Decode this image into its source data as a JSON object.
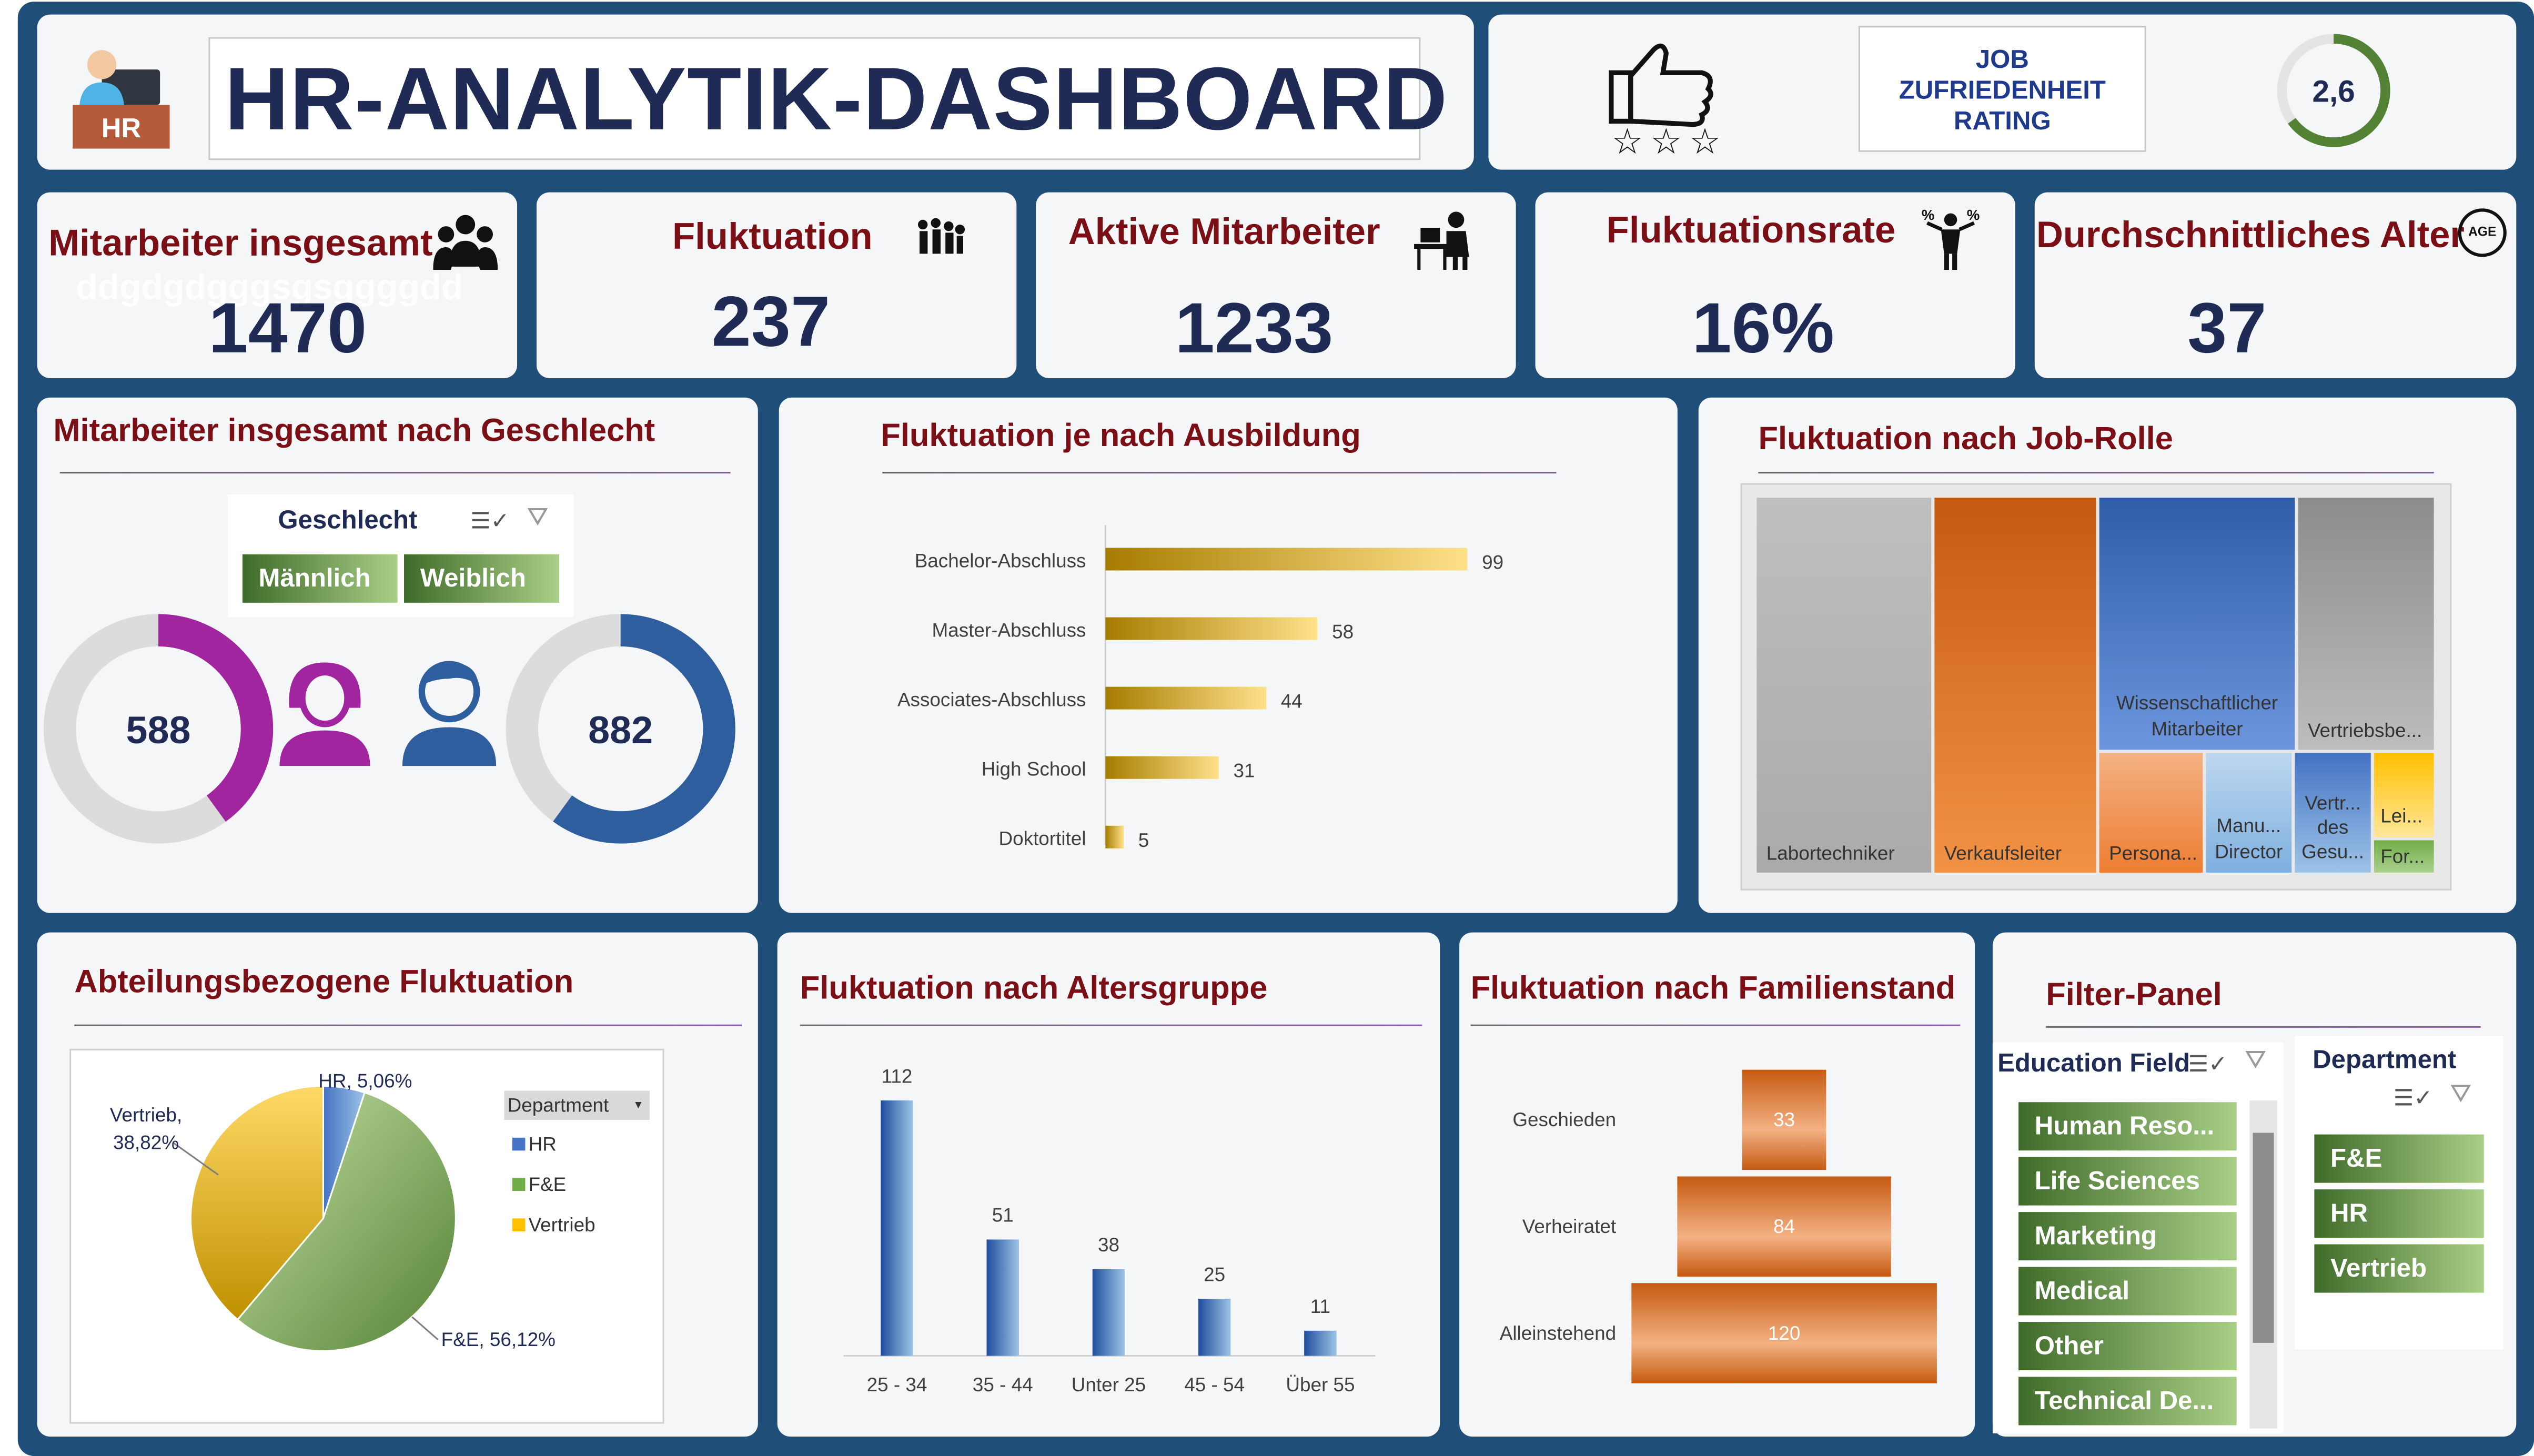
{
  "header": {
    "title": "HR-ANALYTIK-DASHBOARD",
    "logo_text": "HR",
    "rating_label_line1": "JOB",
    "rating_label_line2": "ZUFRIEDENHEIT",
    "rating_label_line3": "RATING",
    "rating_value": "2,6",
    "rating_fraction": 0.65,
    "accent_color": "#1f2b55",
    "frame_color": "#1f4e79"
  },
  "kpis": {
    "total": {
      "title": "Mitarbeiter insgesamt",
      "value": "1470",
      "ghost_text": "ddgdgdgggsgsggggdd"
    },
    "attrition": {
      "title": "Fluktuation",
      "value": "237"
    },
    "active": {
      "title": "Aktive Mitarbeiter",
      "value": "1233"
    },
    "rate": {
      "title": "Fluktuationsrate",
      "value": "16%"
    },
    "age": {
      "title": "Durchschnittliches Alter",
      "value": "37",
      "badge": "AGE"
    }
  },
  "gender": {
    "title": "Mitarbeiter insgesamt nach Geschlecht",
    "slicer_title": "Geschlecht",
    "options": [
      "Männlich",
      "Weiblich"
    ],
    "female_value": "588",
    "male_value": "882",
    "female_color": "#a1259e",
    "male_color": "#2e5e9e"
  },
  "education_chart": {
    "title": "Fluktuation je nach Ausbildung",
    "chart_data": {
      "type": "bar",
      "categories": [
        "Bachelor-Abschluss",
        "Master-Abschluss",
        "Associates-Abschluss",
        "High School",
        "Doktortitel"
      ],
      "values": [
        99,
        58,
        44,
        31,
        5
      ],
      "labels": [
        "99",
        "58",
        "44",
        "31",
        "5"
      ]
    }
  },
  "jobrole": {
    "title": "Fluktuation nach Job-Rolle",
    "tiles": [
      "Labortechniker",
      "Verkaufsleiter",
      "Wissenschaftlicher Mitarbeiter",
      "Vertriebsbe...",
      "Persona...",
      "Manu... Director",
      "Vertr... des Gesu...",
      "Lei...",
      "For..."
    ]
  },
  "department": {
    "title": "Abteilungsbezogene Fluktuation",
    "legend_title": "Department",
    "chart_data": {
      "type": "pie",
      "categories": [
        "HR",
        "F&E",
        "Vertrieb"
      ],
      "values": [
        5.06,
        56.12,
        38.82
      ],
      "labels": [
        "HR, 5,06%",
        "F&E, 56,12%",
        "Vertrieb, 38,82%"
      ],
      "label_vertrieb_line1": "Vertrieb,",
      "label_vertrieb_line2": "38,82%"
    }
  },
  "age_chart": {
    "title": "Fluktuation nach Altersgruppe",
    "chart_data": {
      "type": "bar",
      "categories": [
        "25 - 34",
        "35 - 44",
        "Unter 25",
        "45 - 54",
        "Über 55"
      ],
      "values": [
        112,
        51,
        38,
        25,
        11
      ],
      "labels": [
        "112",
        "51",
        "38",
        "25",
        "11"
      ]
    }
  },
  "marital_chart": {
    "title": "Fluktuation nach Familienstand",
    "chart_data": {
      "type": "bar",
      "categories": [
        "Geschieden",
        "Verheiratet",
        "Alleinstehend"
      ],
      "values": [
        33,
        84,
        120
      ],
      "labels": [
        "33",
        "84",
        "120"
      ]
    }
  },
  "filter_panel": {
    "title": "Filter-Panel",
    "education_title": "Education Field",
    "education_items": [
      "Human Reso...",
      "Life Sciences",
      "Marketing",
      "Medical",
      "Other",
      "Technical De..."
    ],
    "department_title": "Department",
    "department_items": [
      "F&E",
      "HR",
      "Vertrieb"
    ]
  }
}
